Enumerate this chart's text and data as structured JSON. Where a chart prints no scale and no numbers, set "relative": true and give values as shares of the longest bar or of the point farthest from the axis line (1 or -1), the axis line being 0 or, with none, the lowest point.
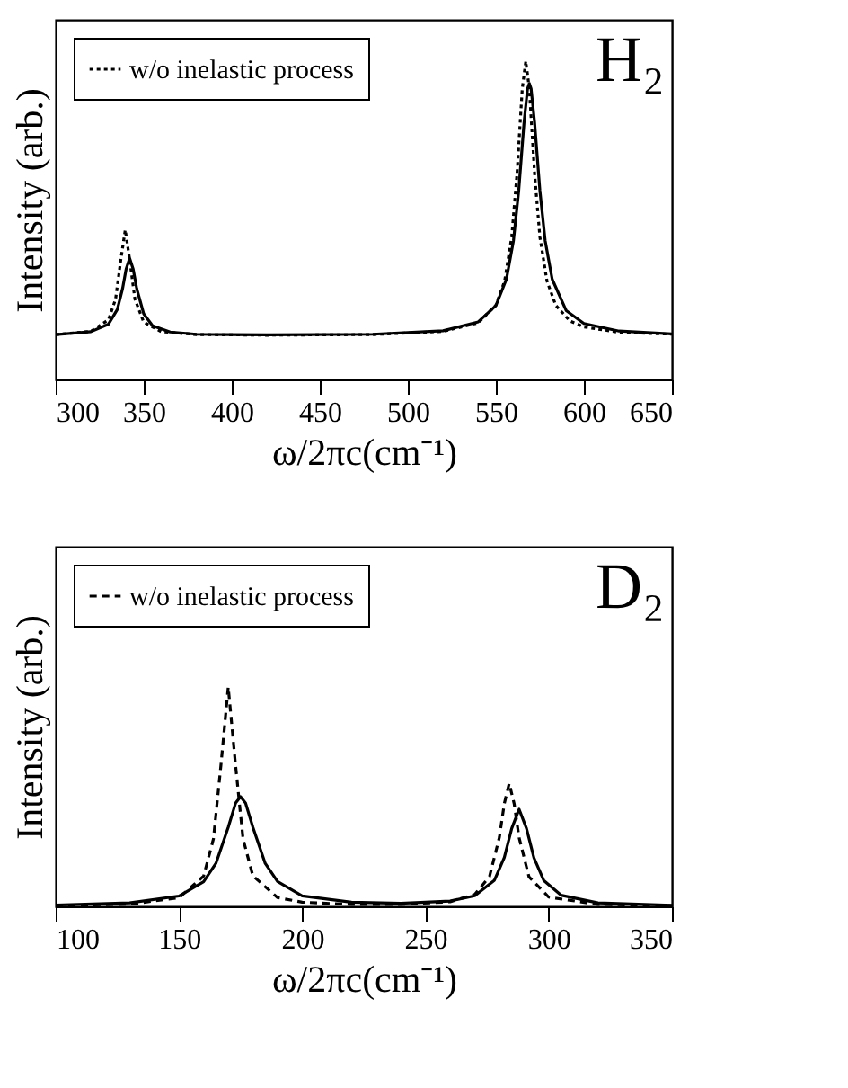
{
  "chart_data": [
    {
      "type": "line",
      "relative": true,
      "xlabel": "ω/2πc(cm⁻¹)",
      "ylabel": "Intensity (arb.)",
      "xlim": [
        300,
        650
      ],
      "xticks": [
        300,
        350,
        400,
        450,
        500,
        550,
        600,
        650
      ],
      "tick_labels": "x",
      "grid": false,
      "legend": "top left",
      "annotations": [
        "H₂"
      ],
      "series": [
        {
          "color": "#000000",
          "line_style": "solid",
          "x": [
            300,
            320,
            330,
            335,
            338,
            340,
            342,
            344,
            346,
            350,
            355,
            365,
            380,
            420,
            480,
            520,
            540,
            550,
            556,
            560,
            563,
            566,
            568,
            569,
            570,
            572,
            575,
            578,
            582,
            590,
            600,
            620,
            650
          ],
          "values": [
            0.141,
            0.15,
            0.174,
            0.22,
            0.286,
            0.347,
            0.381,
            0.347,
            0.286,
            0.206,
            0.169,
            0.149,
            0.142,
            0.14,
            0.142,
            0.153,
            0.181,
            0.232,
            0.315,
            0.436,
            0.594,
            0.807,
            0.914,
            0.93,
            0.914,
            0.807,
            0.594,
            0.436,
            0.315,
            0.216,
            0.176,
            0.152,
            0.143
          ]
        },
        {
          "name": "w/o inelastic process",
          "color": "#000000",
          "line_style": "dotted",
          "x": [
            300,
            320,
            330,
            334,
            337,
            339.5,
            342,
            345,
            350,
            360,
            380,
            420,
            480,
            520,
            540,
            550,
            555,
            559,
            562,
            565,
            567,
            569,
            572,
            575,
            579,
            584,
            592,
            600,
            620,
            650
          ],
          "values": [
            0.141,
            0.151,
            0.188,
            0.252,
            0.377,
            0.47,
            0.377,
            0.252,
            0.18,
            0.15,
            0.141,
            0.139,
            0.141,
            0.151,
            0.178,
            0.233,
            0.31,
            0.448,
            0.646,
            0.914,
            1.0,
            0.914,
            0.646,
            0.448,
            0.31,
            0.233,
            0.184,
            0.165,
            0.148,
            0.142
          ]
        }
      ]
    },
    {
      "type": "line",
      "relative": true,
      "xlabel": "ω/2πc(cm⁻¹)",
      "ylabel": "Intensity (arb.)",
      "xlim": [
        100,
        350
      ],
      "xticks": [
        100,
        150,
        200,
        250,
        300,
        350
      ],
      "tick_labels": "x",
      "grid": false,
      "legend": "top left",
      "annotations": [
        "D₂"
      ],
      "series": [
        {
          "color": "#000000",
          "line_style": "solid",
          "x": [
            100,
            130,
            150,
            160,
            165,
            170,
            173,
            175,
            177,
            180,
            185,
            190,
            200,
            220,
            240,
            260,
            270,
            278,
            282,
            285,
            288,
            291,
            294,
            298,
            305,
            320,
            350
          ],
          "values": [
            0.006,
            0.016,
            0.047,
            0.112,
            0.196,
            0.361,
            0.472,
            0.5,
            0.472,
            0.361,
            0.196,
            0.113,
            0.048,
            0.019,
            0.014,
            0.024,
            0.048,
            0.119,
            0.223,
            0.355,
            0.443,
            0.355,
            0.222,
            0.118,
            0.051,
            0.016,
            0.005
          ]
        },
        {
          "name": "w/o inelastic process",
          "color": "#000000",
          "line_style": "dashed",
          "x": [
            100,
            130,
            150,
            160,
            164,
            167,
            170,
            173,
            176,
            180,
            190,
            200,
            220,
            240,
            260,
            270,
            276,
            280,
            282,
            284,
            286,
            288,
            292,
            300,
            320,
            350
          ],
          "values": [
            0.003,
            0.01,
            0.039,
            0.138,
            0.308,
            0.64,
            1.0,
            0.64,
            0.308,
            0.139,
            0.04,
            0.019,
            0.009,
            0.009,
            0.021,
            0.054,
            0.136,
            0.315,
            0.469,
            0.561,
            0.468,
            0.313,
            0.135,
            0.042,
            0.009,
            0.003
          ]
        }
      ]
    }
  ]
}
